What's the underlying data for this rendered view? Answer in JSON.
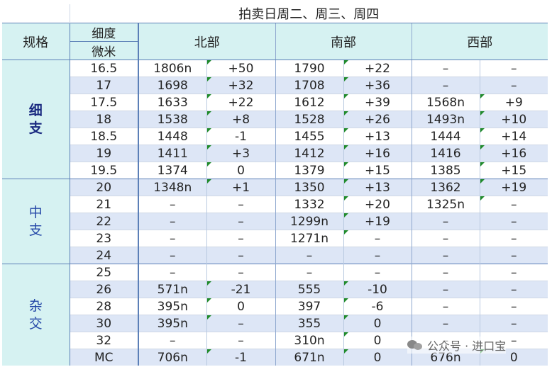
{
  "title": "拍卖日周二、周三、周四",
  "headers": {
    "spec": "规格",
    "fineness_top": "细度",
    "fineness_bottom": "微米",
    "regions": [
      "北部",
      "南部",
      "西部"
    ]
  },
  "groups": [
    {
      "name_chars": [
        "细",
        "支"
      ],
      "rows": [
        {
          "micron": "16.5",
          "north": [
            "1806n",
            "+50"
          ],
          "south": [
            "1790",
            "+22"
          ],
          "west": [
            "–",
            "–"
          ]
        },
        {
          "micron": "17",
          "north": [
            "1698",
            "+32"
          ],
          "south": [
            "1708",
            "+36"
          ],
          "west": [
            "–",
            "–"
          ]
        },
        {
          "micron": "17.5",
          "north": [
            "1633",
            "+22"
          ],
          "south": [
            "1612",
            "+39"
          ],
          "west": [
            "1568n",
            "+9"
          ]
        },
        {
          "micron": "18",
          "north": [
            "1538",
            "+8"
          ],
          "south": [
            "1528",
            "+26"
          ],
          "west": [
            "1493n",
            "+10"
          ]
        },
        {
          "micron": "18.5",
          "north": [
            "1448",
            "-1"
          ],
          "south": [
            "1455",
            "+13"
          ],
          "west": [
            "1444",
            "+14"
          ]
        },
        {
          "micron": "19",
          "north": [
            "1411",
            "+3"
          ],
          "south": [
            "1412",
            "+16"
          ],
          "west": [
            "1416",
            "+16"
          ]
        },
        {
          "micron": "19.5",
          "north": [
            "1374",
            "0"
          ],
          "south": [
            "1379",
            "+15"
          ],
          "west": [
            "1385",
            "+15"
          ]
        }
      ]
    },
    {
      "name_chars": [
        "中",
        "支"
      ],
      "rows": [
        {
          "micron": "20",
          "north": [
            "1348n",
            "+1"
          ],
          "south": [
            "1350",
            "+13"
          ],
          "west": [
            "1362",
            "+19"
          ]
        },
        {
          "micron": "21",
          "north": [
            "–",
            "–"
          ],
          "south": [
            "1332",
            "+20"
          ],
          "west": [
            "1325n",
            "–"
          ]
        },
        {
          "micron": "22",
          "north": [
            "–",
            "–"
          ],
          "south": [
            "1299n",
            "+19"
          ],
          "west": [
            "–",
            "–"
          ]
        },
        {
          "micron": "23",
          "north": [
            "–",
            "–"
          ],
          "south": [
            "1271n",
            "–"
          ],
          "west": [
            "–",
            "–"
          ]
        },
        {
          "micron": "24",
          "north": [
            "–",
            "–"
          ],
          "south": [
            "–",
            "–"
          ],
          "west": [
            "–",
            "–"
          ]
        }
      ]
    },
    {
      "name_chars": [
        "杂",
        "交"
      ],
      "rows": [
        {
          "micron": "25",
          "north": [
            "–",
            "–"
          ],
          "south": [
            "–",
            "–"
          ],
          "west": [
            "–",
            "–"
          ]
        },
        {
          "micron": "26",
          "north": [
            "571n",
            "-21"
          ],
          "south": [
            "555",
            "-10"
          ],
          "west": [
            "–",
            "–"
          ]
        },
        {
          "micron": "28",
          "north": [
            "395n",
            "0"
          ],
          "south": [
            "397",
            "-6"
          ],
          "west": [
            "–",
            "–"
          ]
        },
        {
          "micron": "30",
          "north": [
            "395n",
            "–"
          ],
          "south": [
            "355",
            "0"
          ],
          "west": [
            "–",
            "–"
          ]
        },
        {
          "micron": "32",
          "north": [
            "–",
            "–"
          ],
          "south": [
            "310n",
            "0"
          ],
          "west": [
            "–",
            "–"
          ]
        },
        {
          "micron": "MC",
          "north": [
            "706n",
            "-1"
          ],
          "south": [
            "671n",
            "0"
          ],
          "west": [
            "676n",
            "0"
          ]
        }
      ]
    }
  ],
  "watermark": "公众号 · 进口宝",
  "colors": {
    "header_bg": "#d6f2f2",
    "alt_row_bg": "#dde6f6",
    "border": "#5b7fb7",
    "group_text_bold": "#1a2a80",
    "group_text": "#2548a8",
    "comment_marker": "#1f8a2a"
  }
}
